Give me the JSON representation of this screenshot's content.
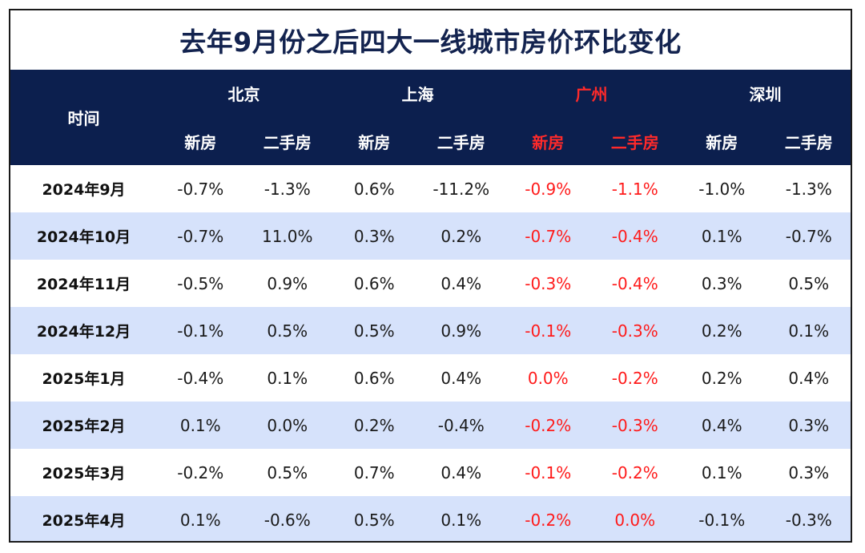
{
  "title": "去年9月份之后四大一线城市房价环比变化",
  "header": {
    "time_label": "时间",
    "cities": [
      "北京",
      "上海",
      "广州",
      "深圳"
    ],
    "sub_labels": [
      "新房",
      "二手房",
      "新房",
      "二手房",
      "新房",
      "二手房",
      "新房",
      "二手房"
    ],
    "highlight_city": "广州",
    "highlight_color": "#ff1a1a",
    "header_bg": "#0c1f4e",
    "alt_row_bg": "#d6e2fb"
  },
  "rows": [
    {
      "time": "2024年9月",
      "values": [
        "-0.7%",
        "-1.3%",
        "0.6%",
        "-11.2%",
        "-0.9%",
        "-1.1%",
        "-1.0%",
        "-1.3%"
      ]
    },
    {
      "time": "2024年10月",
      "values": [
        "-0.7%",
        "11.0%",
        "0.3%",
        "0.2%",
        "-0.7%",
        "-0.4%",
        "0.1%",
        "-0.7%"
      ]
    },
    {
      "time": "2024年11月",
      "values": [
        "-0.5%",
        "0.9%",
        "0.6%",
        "0.4%",
        "-0.3%",
        "-0.4%",
        "0.3%",
        "0.5%"
      ]
    },
    {
      "time": "2024年12月",
      "values": [
        "-0.1%",
        "0.5%",
        "0.5%",
        "0.9%",
        "-0.1%",
        "-0.3%",
        "0.2%",
        "0.1%"
      ]
    },
    {
      "time": "2025年1月",
      "values": [
        "-0.4%",
        "0.1%",
        "0.6%",
        "0.4%",
        "0.0%",
        "-0.2%",
        "0.2%",
        "0.4%"
      ]
    },
    {
      "time": "2025年2月",
      "values": [
        "0.1%",
        "0.0%",
        "0.2%",
        "-0.4%",
        "-0.2%",
        "-0.3%",
        "0.4%",
        "0.3%"
      ]
    },
    {
      "time": "2025年3月",
      "values": [
        "-0.2%",
        "0.5%",
        "0.7%",
        "0.4%",
        "-0.1%",
        "-0.2%",
        "0.1%",
        "0.3%"
      ]
    },
    {
      "time": "2025年4月",
      "values": [
        "0.1%",
        "-0.6%",
        "0.5%",
        "0.1%",
        "-0.2%",
        "0.0%",
        "-0.1%",
        "-0.3%"
      ]
    }
  ]
}
